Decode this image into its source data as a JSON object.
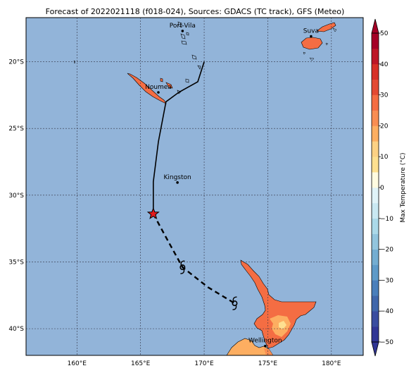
{
  "title": "Forecast of 2022021118 (f018-024), Sources: GDACS (TC track), GFS (Meteo)",
  "map": {
    "lon_range": [
      156,
      182.5
    ],
    "lat_range": [
      -42,
      -16.7
    ],
    "ocean_color": "#92b4d9",
    "land_color_default": "#f46d43",
    "lat_ticks": [
      {
        "lat": -20,
        "label": "20°S"
      },
      {
        "lat": -25,
        "label": "25°S"
      },
      {
        "lat": -30,
        "label": "30°S"
      },
      {
        "lat": -35,
        "label": "35°S"
      },
      {
        "lat": -40,
        "label": "40°S"
      }
    ],
    "lon_ticks": [
      {
        "lon": 160,
        "label": "160°E"
      },
      {
        "lon": 165,
        "label": "165°E"
      },
      {
        "lon": 170,
        "label": "170°E"
      },
      {
        "lon": 175,
        "label": "175°E"
      },
      {
        "lon": 180,
        "label": "180°E"
      }
    ],
    "cities": [
      {
        "name": "Port-Vila",
        "lon": 168.3,
        "lat": -17.7
      },
      {
        "name": "Suva",
        "lon": 178.4,
        "lat": -18.1
      },
      {
        "name": "Noumea",
        "lon": 166.4,
        "lat": -22.3
      },
      {
        "name": "Kingston",
        "lon": 167.9,
        "lat": -29.05
      },
      {
        "name": "Wellington",
        "lon": 174.8,
        "lat": -41.3
      }
    ],
    "track_observed": [
      [
        170.0,
        -20.0
      ],
      [
        169.5,
        -21.5
      ],
      [
        168.0,
        -22.3
      ],
      [
        167.0,
        -23.0
      ],
      [
        166.4,
        -26.0
      ],
      [
        166.0,
        -29.0
      ],
      [
        166.0,
        -31.4
      ]
    ],
    "track_forecast": [
      [
        166.0,
        -31.4
      ],
      [
        167.2,
        -33.5
      ],
      [
        168.3,
        -35.4
      ],
      [
        170.3,
        -36.9
      ],
      [
        172.4,
        -38.1
      ]
    ],
    "current_position": {
      "lon": 166.0,
      "lat": -31.4
    },
    "forecast_symbols": [
      {
        "lon": 168.3,
        "lat": -35.4
      },
      {
        "lon": 172.4,
        "lat": -38.1
      }
    ]
  },
  "colorbar": {
    "label": "Max Temperature (°C)",
    "min": -50,
    "max": 50,
    "ticks": [
      {
        "value": 50,
        "label": "50"
      },
      {
        "value": 40,
        "label": "40"
      },
      {
        "value": 30,
        "label": "30"
      },
      {
        "value": 20,
        "label": "20"
      },
      {
        "value": 10,
        "label": "10"
      },
      {
        "value": 0,
        "label": "0"
      },
      {
        "value": -10,
        "label": "−10"
      },
      {
        "value": -20,
        "label": "−20"
      },
      {
        "value": -30,
        "label": "−30"
      },
      {
        "value": -40,
        "label": "−40"
      },
      {
        "value": -50,
        "label": "−50"
      }
    ],
    "bands": [
      {
        "from": -50,
        "to": -45,
        "color": "#313695"
      },
      {
        "from": -45,
        "to": -40,
        "color": "#3a4da0"
      },
      {
        "from": -40,
        "to": -35,
        "color": "#4067ab"
      },
      {
        "from": -35,
        "to": -30,
        "color": "#4a7fbb"
      },
      {
        "from": -30,
        "to": -25,
        "color": "#5e9ac8"
      },
      {
        "from": -25,
        "to": -20,
        "color": "#74add1"
      },
      {
        "from": -20,
        "to": -15,
        "color": "#92c5de"
      },
      {
        "from": -15,
        "to": -10,
        "color": "#abd9e9"
      },
      {
        "from": -10,
        "to": -5,
        "color": "#c9e8f2"
      },
      {
        "from": -5,
        "to": 0,
        "color": "#e0f3f8"
      },
      {
        "from": 0,
        "to": 5,
        "color": "#fffbe0"
      },
      {
        "from": 5,
        "to": 10,
        "color": "#fee090"
      },
      {
        "from": 10,
        "to": 15,
        "color": "#fdd184"
      },
      {
        "from": 15,
        "to": 20,
        "color": "#fdae61"
      },
      {
        "from": 20,
        "to": 25,
        "color": "#f88d52"
      },
      {
        "from": 25,
        "to": 30,
        "color": "#f46d43"
      },
      {
        "from": 30,
        "to": 35,
        "color": "#e34a33"
      },
      {
        "from": 35,
        "to": 40,
        "color": "#d73027"
      },
      {
        "from": 40,
        "to": 45,
        "color": "#bd1727"
      },
      {
        "from": 45,
        "to": 50,
        "color": "#a50026"
      }
    ]
  }
}
